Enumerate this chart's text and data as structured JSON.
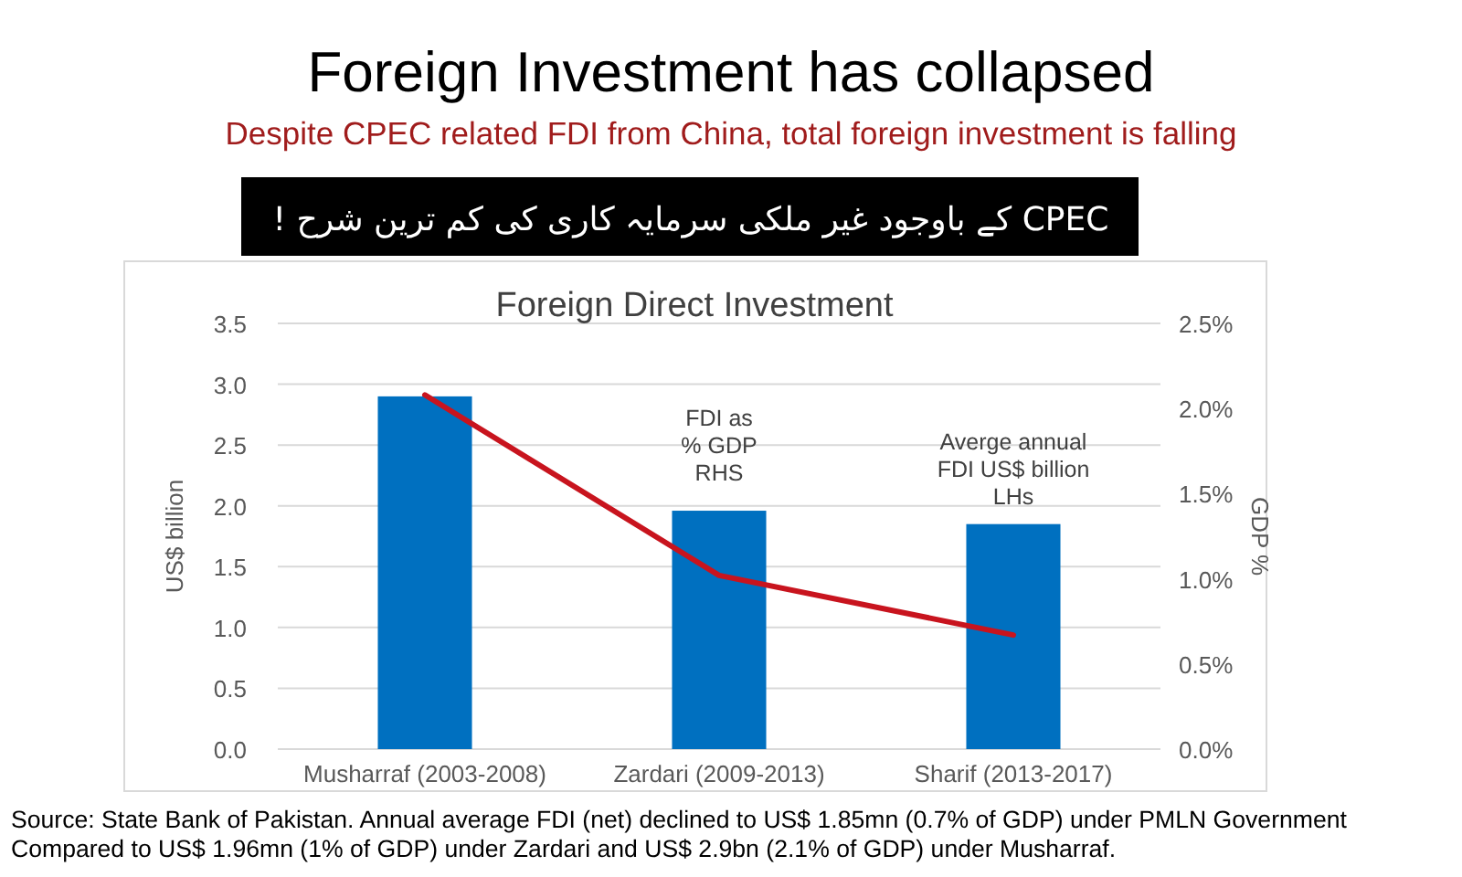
{
  "chart_data": {
    "type": "bar",
    "title": "Foreign Investment has collapsed",
    "subtitle": "Despite CPEC related FDI from China, total foreign investment is falling",
    "categories": [
      "Musharraf (2003-2008)",
      "Zardari (2009-2013)",
      "Sharif (2013-2017)"
    ],
    "series": [
      {
        "color": "#0070c0",
        "values": [
          2.9,
          1.96,
          1.85
        ]
      },
      {
        "type": "line",
        "axis": "y2",
        "color": "#c8141e",
        "values": [
          2.08,
          1.02,
          0.67
        ]
      }
    ],
    "ylabel": "US$ billion",
    "y2label": "GDP %",
    "ylim": [
      0,
      3.5
    ],
    "yticks": [
      {
        "value": 0,
        "label": "0.0"
      },
      0.5,
      {
        "value": 1,
        "label": "1.0"
      },
      1.5,
      {
        "value": 2,
        "label": "2.0"
      },
      2.5,
      {
        "value": 3,
        "label": "3.0"
      },
      3.5
    ],
    "y2lim": [
      0,
      2.5
    ],
    "y2ticks": [
      {
        "value": 0,
        "label": "0.0%"
      },
      {
        "value": 0.5,
        "label": "0.5%"
      },
      {
        "value": 1,
        "label": "1.0%"
      },
      {
        "value": 1.5,
        "label": "1.5%"
      },
      {
        "value": 2,
        "label": "2.0%"
      },
      {
        "value": 2.5,
        "label": "2.5%"
      }
    ],
    "grid": "y",
    "annotations": [
      "CPEC کے باوجود غیر ملکی سرمایہ کاری کی کم ترین شرح !",
      "Foreign Direct Investment",
      "FDI as\n% GDP\nRHS",
      "Averge annual\nFDI US$ billion\nLHs",
      "Source: State Bank of Pakistan. Annual average FDI (net) declined to US$ 1.85mn (0.7% of GDP) under PMLN Government\nCompared to US$ 1.96mn (1% of GDP) under Zardari and US$ 2.9bn (2.1% of GDP) under Musharraf."
    ]
  }
}
